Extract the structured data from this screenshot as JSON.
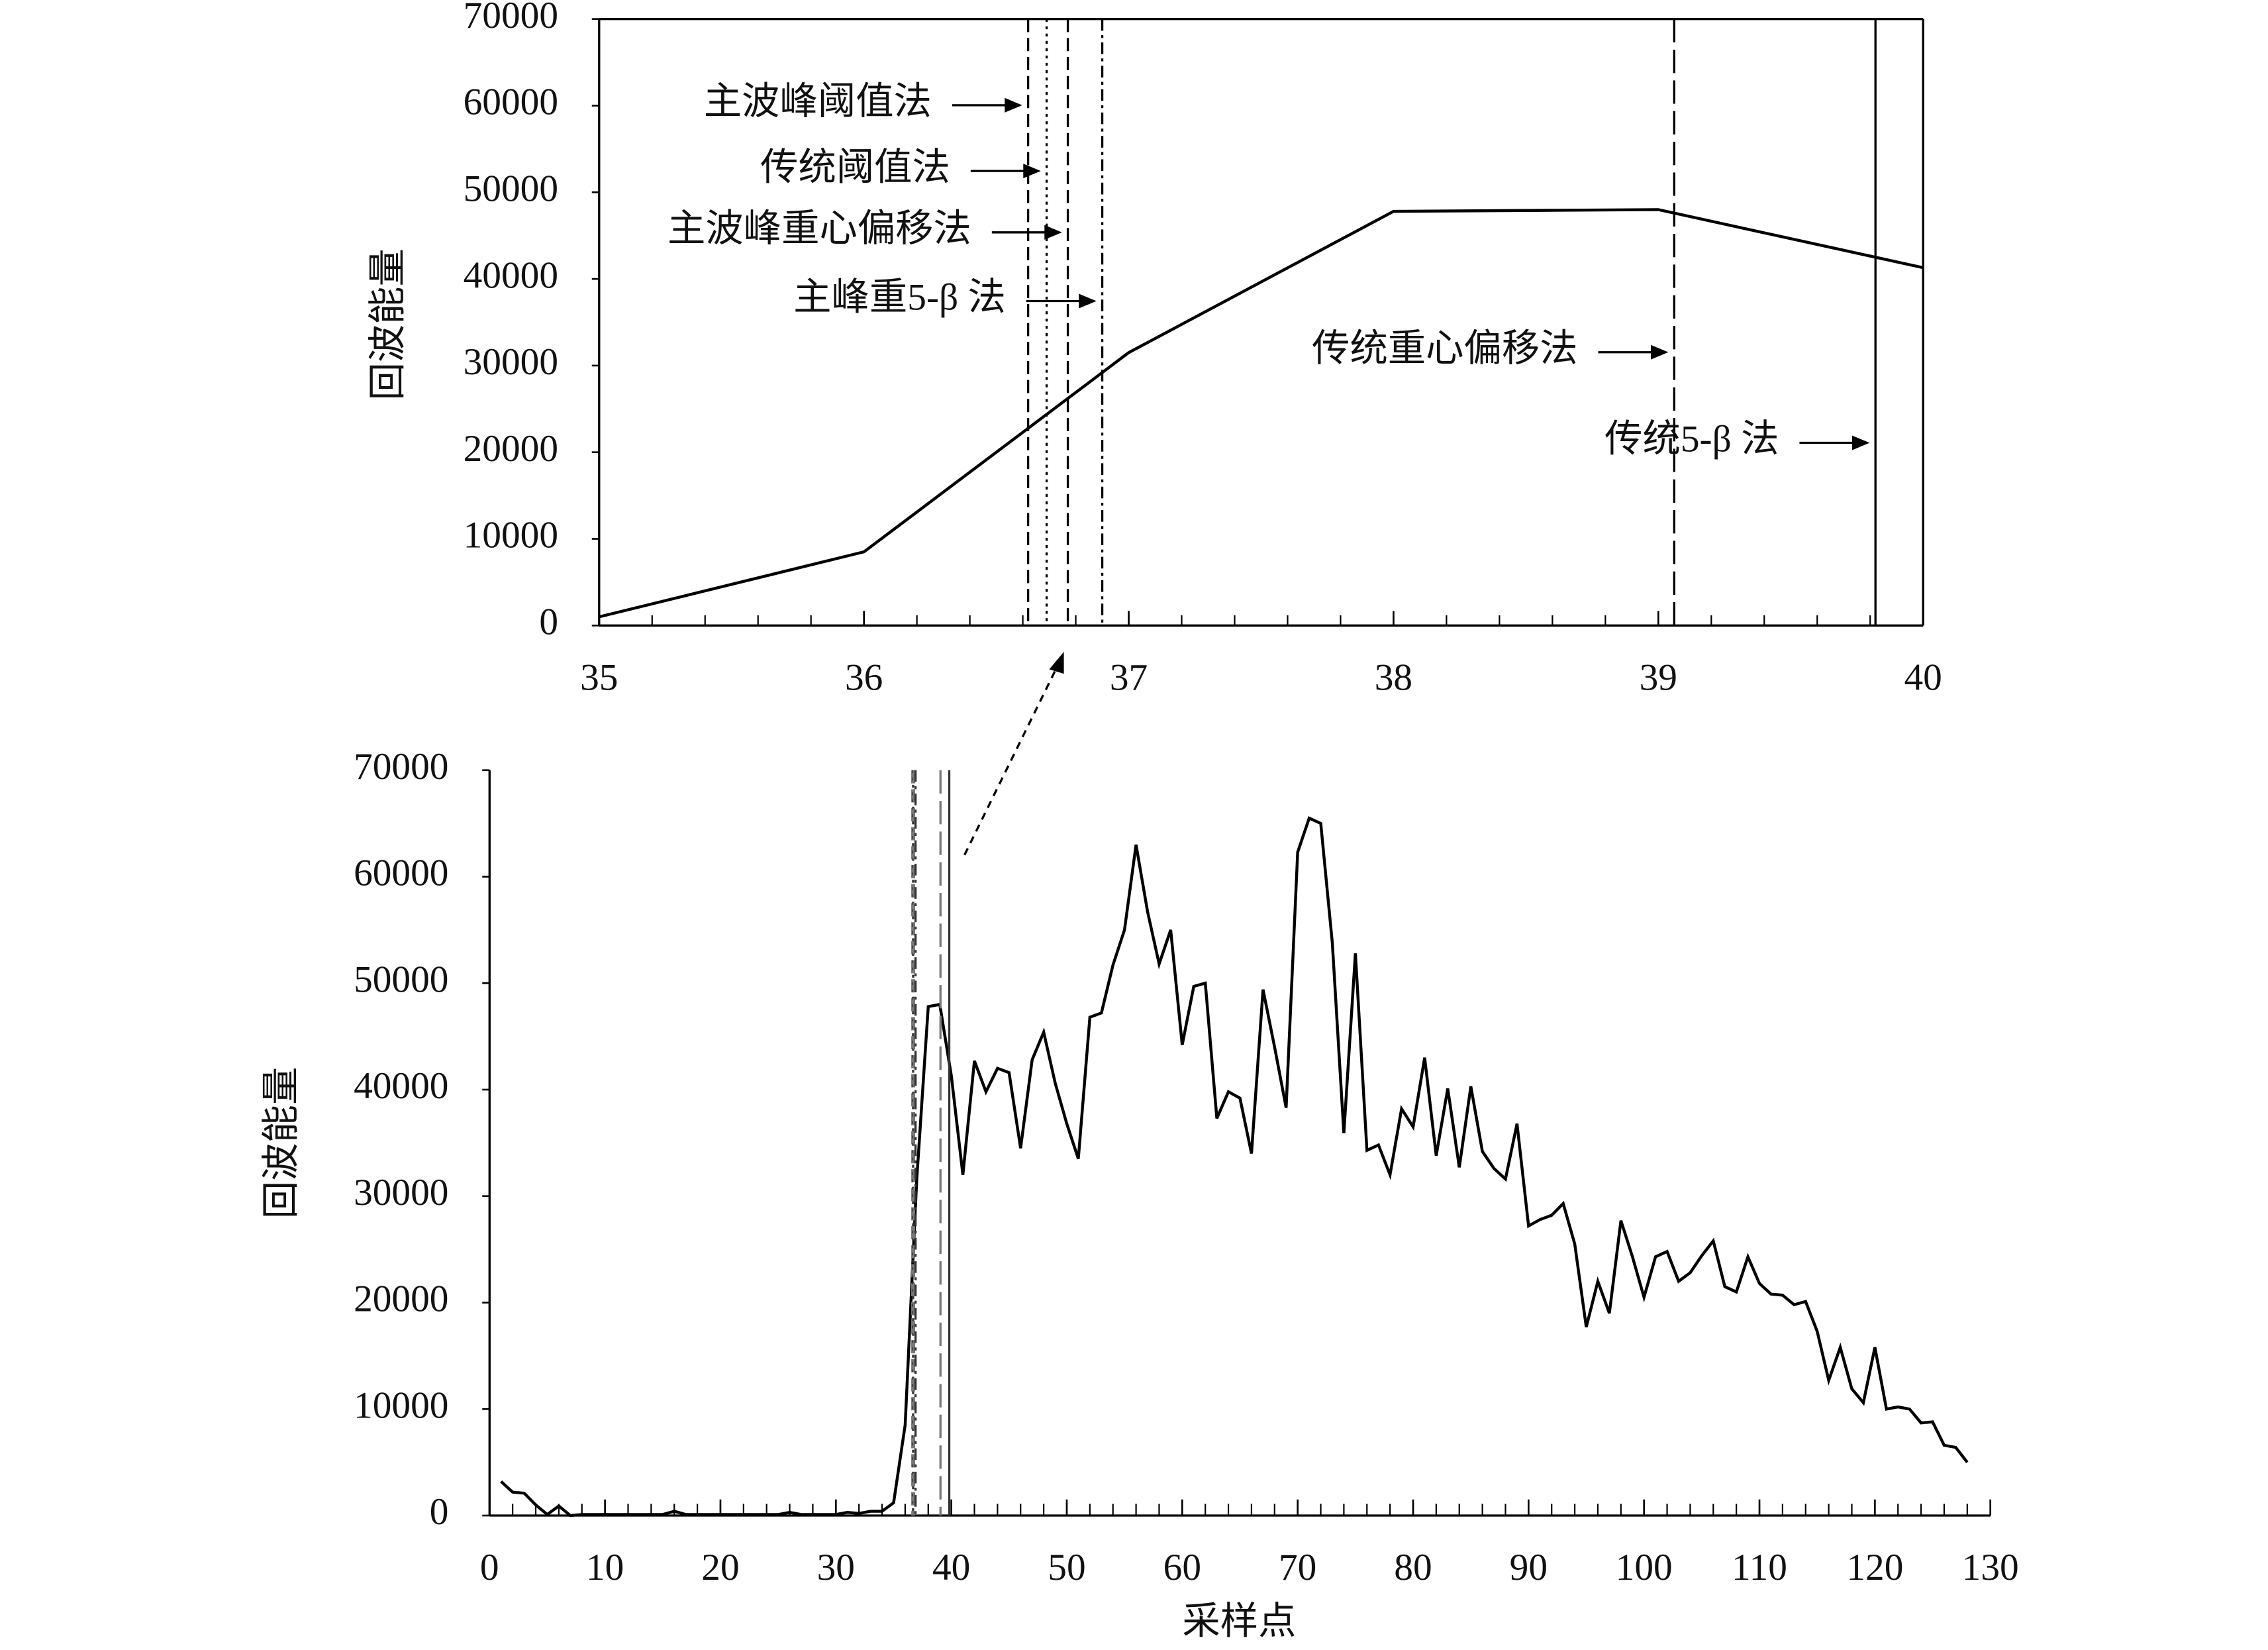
{
  "chart_data": [
    {
      "type": "line",
      "x": [
        35,
        36,
        37,
        38,
        39,
        40
      ],
      "values": [
        1000,
        8500,
        31500,
        47800,
        48000,
        41300
      ],
      "color": "#000000",
      "ylabel": "回波能量",
      "xlim": [
        35,
        40
      ],
      "xticks": [
        35,
        36,
        37,
        38,
        39,
        40
      ],
      "ylim": [
        0,
        70000
      ],
      "yticks": [
        0,
        10000,
        20000,
        30000,
        40000,
        50000,
        60000,
        70000
      ],
      "vlines": [
        {
          "name": "主波峰阈值法",
          "x": 36.62,
          "style": "dashed"
        },
        {
          "name": "传统阈值法",
          "x": 36.69,
          "style": "dotted"
        },
        {
          "name": "主波峰重心偏移法",
          "x": 36.77,
          "style": "dashed"
        },
        {
          "name": "主峰重5-β 法",
          "x": 36.9,
          "style": "dash-dot"
        },
        {
          "name": "传统重心偏移法",
          "x": 39.06,
          "style": "long-dash"
        },
        {
          "name": "传统5-β 法",
          "x": 39.82,
          "style": "solid"
        }
      ]
    },
    {
      "type": "line",
      "x": [
        1,
        2,
        3,
        4,
        5,
        6,
        7,
        8,
        9,
        10,
        11,
        12,
        13,
        14,
        15,
        16,
        17,
        18,
        19,
        20,
        21,
        22,
        23,
        24,
        25,
        26,
        27,
        28,
        29,
        30,
        31,
        32,
        33,
        34,
        35,
        36,
        37,
        38,
        39,
        40,
        41,
        42,
        43,
        44,
        45,
        46,
        47,
        48,
        49,
        50,
        51,
        52,
        53,
        54,
        55,
        56,
        57,
        58,
        59,
        60,
        61,
        62,
        63,
        64,
        65,
        66,
        67,
        68,
        69,
        70,
        71,
        72,
        73,
        74,
        75,
        76,
        77,
        78,
        79,
        80,
        81,
        82,
        83,
        84,
        85,
        86,
        87,
        88,
        89,
        90,
        91,
        92,
        93,
        94,
        95,
        96,
        97,
        98,
        99,
        100,
        101,
        102,
        103,
        104,
        105,
        106,
        107,
        108,
        109,
        110,
        111,
        112,
        113,
        114,
        115,
        116,
        117,
        118,
        119,
        120,
        121,
        122,
        123,
        124,
        125,
        126,
        127,
        128
      ],
      "values": [
        3200,
        2200,
        2100,
        1000,
        100,
        900,
        0,
        100,
        100,
        100,
        100,
        100,
        100,
        100,
        100,
        400,
        100,
        100,
        100,
        100,
        100,
        100,
        100,
        100,
        100,
        300,
        100,
        100,
        100,
        100,
        300,
        200,
        400,
        400,
        1200,
        8500,
        31500,
        47800,
        48000,
        41300,
        32000,
        42700,
        39800,
        42000,
        41600,
        34500,
        42800,
        45400,
        40600,
        36800,
        33500,
        46800,
        47200,
        51700,
        55000,
        63000,
        56700,
        51800,
        55000,
        44200,
        49700,
        50000,
        37300,
        39800,
        39200,
        34000,
        49400,
        44000,
        38300,
        62300,
        65500,
        65000,
        53800,
        35900,
        52800,
        34300,
        34800,
        32000,
        38200,
        36500,
        43000,
        33800,
        40100,
        32700,
        40300,
        34200,
        32600,
        31600,
        36800,
        27200,
        27800,
        28200,
        29300,
        25500,
        17700,
        22000,
        19000,
        27700,
        24300,
        20500,
        24300,
        24800,
        22000,
        22800,
        24400,
        25800,
        21500,
        21000,
        24300,
        21800,
        20800,
        20700,
        19800,
        20100,
        17300,
        12700,
        15800,
        11900,
        10600,
        15800,
        10000,
        10200,
        10000,
        8700,
        8800,
        6600,
        6400,
        5000
      ],
      "color": "#000000",
      "xlabel": "采样点",
      "ylabel": "回波能量",
      "xlim": [
        0,
        130
      ],
      "xticks": [
        0,
        10,
        20,
        30,
        40,
        50,
        60,
        70,
        80,
        90,
        100,
        110,
        120,
        130
      ],
      "ylim": [
        0,
        70000
      ],
      "yticks": [
        0,
        10000,
        20000,
        30000,
        40000,
        50000,
        60000,
        70000
      ]
    }
  ]
}
